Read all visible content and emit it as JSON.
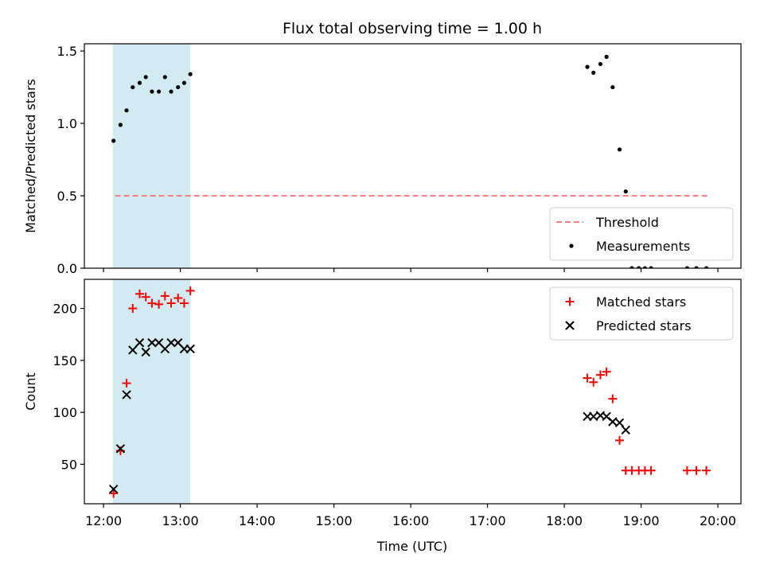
{
  "title": "Flux total observing time = 1.00 h",
  "xlabel": "Time (UTC)",
  "xticks": [
    {
      "h": 12,
      "label": "12:00"
    },
    {
      "h": 13,
      "label": "13:00"
    },
    {
      "h": 14,
      "label": "14:00"
    },
    {
      "h": 15,
      "label": "15:00"
    },
    {
      "h": 16,
      "label": "16:00"
    },
    {
      "h": 17,
      "label": "17:00"
    },
    {
      "h": 18,
      "label": "18:00"
    },
    {
      "h": 19,
      "label": "19:00"
    },
    {
      "h": 20,
      "label": "20:00"
    }
  ],
  "xlim": [
    11.75,
    20.3
  ],
  "shaded_span": [
    12.12,
    13.13
  ],
  "colors": {
    "shade": "#add8e6",
    "threshold": "#ff7f7f",
    "matched": "#ff0000",
    "predicted": "#000000",
    "measurement": "#000000"
  },
  "chart_data": [
    {
      "type": "scatter",
      "ylabel": "Matched/Predicted stars",
      "ylim": [
        0,
        1.55
      ],
      "yticks": [
        {
          "v": 0,
          "label": "0.0"
        },
        {
          "v": 0.5,
          "label": "0.5"
        },
        {
          "v": 1.0,
          "label": "1.0"
        },
        {
          "v": 1.5,
          "label": "1.5"
        }
      ],
      "legend": {
        "placement": "lower right",
        "entries": [
          "Threshold",
          "Measurements"
        ]
      },
      "threshold": {
        "name": "Threshold",
        "y": 0.5,
        "x": [
          12.15,
          19.88
        ]
      },
      "series": [
        {
          "name": "Measurements",
          "x": [
            12.13,
            12.22,
            12.3,
            12.38,
            12.47,
            12.55,
            12.63,
            12.72,
            12.8,
            12.88,
            12.97,
            13.05,
            13.13,
            18.3,
            18.38,
            18.47,
            18.55,
            18.63,
            18.72,
            18.8,
            18.88,
            18.97,
            19.05,
            19.13,
            19.6,
            19.72,
            19.85
          ],
          "y": [
            0.88,
            0.99,
            1.09,
            1.25,
            1.28,
            1.32,
            1.22,
            1.22,
            1.32,
            1.22,
            1.25,
            1.28,
            1.34,
            1.39,
            1.35,
            1.41,
            1.46,
            1.25,
            0.82,
            0.53,
            0,
            0,
            0,
            0,
            0,
            0,
            0
          ]
        }
      ]
    },
    {
      "type": "scatter",
      "ylabel": "Count",
      "ylim": [
        12,
        228
      ],
      "yticks": [
        {
          "v": 50,
          "label": "50"
        },
        {
          "v": 100,
          "label": "100"
        },
        {
          "v": 150,
          "label": "150"
        },
        {
          "v": 200,
          "label": "200"
        }
      ],
      "legend": {
        "placement": "upper right",
        "entries": [
          "Matched stars",
          "Predicted stars"
        ]
      },
      "series": [
        {
          "name": "Matched stars",
          "x": [
            12.13,
            12.22,
            12.3,
            12.38,
            12.47,
            12.55,
            12.63,
            12.72,
            12.8,
            12.88,
            12.97,
            13.05,
            13.13,
            18.3,
            18.38,
            18.47,
            18.55,
            18.63,
            18.72,
            18.8,
            18.88,
            18.97,
            19.05,
            19.13,
            19.6,
            19.72,
            19.85
          ],
          "y": [
            22,
            63,
            128,
            200,
            214,
            211,
            205,
            204,
            212,
            205,
            210,
            205,
            217,
            133,
            129,
            136,
            139,
            113,
            73,
            44,
            44,
            44,
            44,
            44,
            44,
            44,
            44
          ]
        },
        {
          "name": "Predicted stars",
          "x": [
            12.13,
            12.22,
            12.3,
            12.38,
            12.47,
            12.55,
            12.63,
            12.72,
            12.8,
            12.88,
            12.97,
            13.05,
            13.13,
            18.3,
            18.38,
            18.47,
            18.55,
            18.63,
            18.72,
            18.8
          ],
          "y": [
            26,
            65,
            117,
            160,
            167,
            158,
            167,
            167,
            161,
            167,
            167,
            161,
            161,
            96,
            96,
            97,
            96,
            91,
            90,
            83
          ]
        }
      ]
    }
  ]
}
